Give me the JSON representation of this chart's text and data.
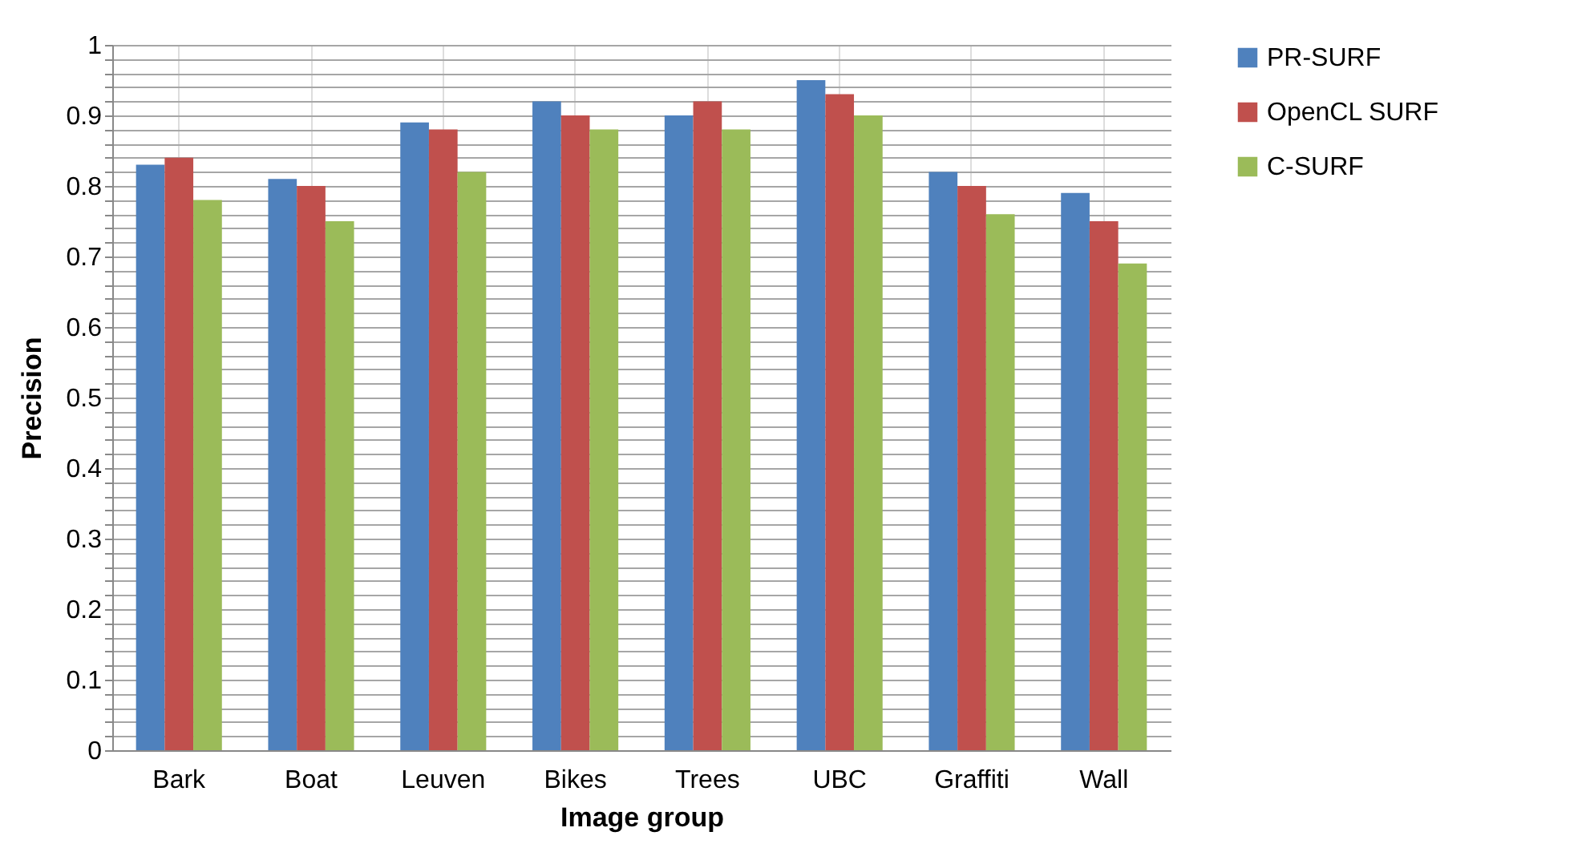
{
  "chart_data": {
    "type": "bar",
    "xlabel": "Image group",
    "ylabel": "Precision",
    "categories": [
      "Bark",
      "Boat",
      "Leuven",
      "Bikes",
      "Trees",
      "UBC",
      "Graffiti",
      "Wall"
    ],
    "series": [
      {
        "name": "PR-SURF",
        "color": "#4f81bd",
        "values": [
          0.83,
          0.81,
          0.89,
          0.92,
          0.9,
          0.95,
          0.82,
          0.79
        ]
      },
      {
        "name": "OpenCL SURF",
        "color": "#c0504d",
        "values": [
          0.84,
          0.8,
          0.88,
          0.9,
          0.92,
          0.93,
          0.8,
          0.75
        ]
      },
      {
        "name": "C-SURF",
        "color": "#9bbb59",
        "values": [
          0.78,
          0.75,
          0.82,
          0.88,
          0.88,
          0.9,
          0.76,
          0.69
        ]
      }
    ],
    "ylim": [
      0,
      1
    ],
    "yticks": [
      0,
      {
        "value": 0.02,
        "label": null
      },
      {
        "value": 0.04,
        "label": null
      },
      {
        "value": 0.06,
        "label": null
      },
      {
        "value": 0.08,
        "label": null
      },
      0.1,
      {
        "value": 0.12,
        "label": null
      },
      {
        "value": 0.14,
        "label": null
      },
      {
        "value": 0.16,
        "label": null
      },
      {
        "value": 0.18,
        "label": null
      },
      0.2,
      {
        "value": 0.22,
        "label": null
      },
      {
        "value": 0.24,
        "label": null
      },
      {
        "value": 0.26,
        "label": null
      },
      {
        "value": 0.28,
        "label": null
      },
      0.3,
      {
        "value": 0.32,
        "label": null
      },
      {
        "value": 0.34,
        "label": null
      },
      {
        "value": 0.36,
        "label": null
      },
      {
        "value": 0.38,
        "label": null
      },
      0.4,
      {
        "value": 0.42,
        "label": null
      },
      {
        "value": 0.44,
        "label": null
      },
      {
        "value": 0.46,
        "label": null
      },
      {
        "value": 0.48,
        "label": null
      },
      0.5,
      {
        "value": 0.52,
        "label": null
      },
      {
        "value": 0.54,
        "label": null
      },
      {
        "value": 0.56,
        "label": null
      },
      {
        "value": 0.58,
        "label": null
      },
      0.6,
      {
        "value": 0.62,
        "label": null
      },
      {
        "value": 0.64,
        "label": null
      },
      {
        "value": 0.66,
        "label": null
      },
      {
        "value": 0.68,
        "label": null
      },
      0.7,
      {
        "value": 0.72,
        "label": null
      },
      {
        "value": 0.74,
        "label": null
      },
      {
        "value": 0.76,
        "label": null
      },
      {
        "value": 0.78,
        "label": null
      },
      0.8,
      {
        "value": 0.82,
        "label": null
      },
      {
        "value": 0.84,
        "label": null
      },
      {
        "value": 0.86,
        "label": null
      },
      {
        "value": 0.88,
        "label": null
      },
      0.9,
      {
        "value": 0.92,
        "label": null
      },
      {
        "value": 0.94,
        "label": null
      },
      {
        "value": 0.96,
        "label": null
      },
      {
        "value": 0.98,
        "label": null
      },
      1
    ],
    "grid": true,
    "legend": "right"
  }
}
